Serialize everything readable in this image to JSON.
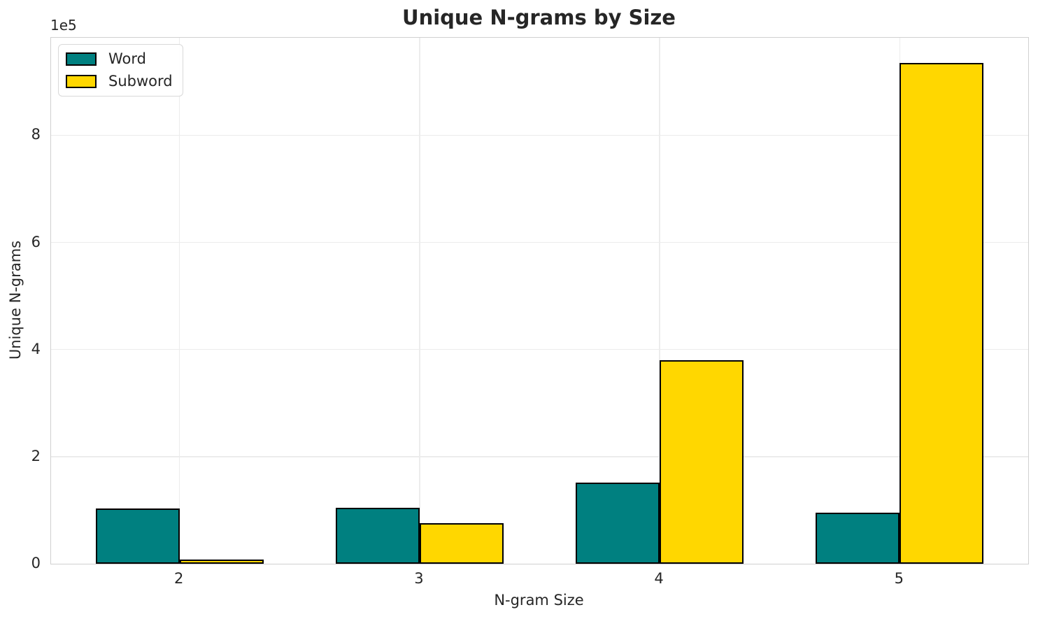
{
  "chart_data": {
    "type": "bar",
    "title": "Unique N-grams by Size",
    "xlabel": "N-gram Size",
    "ylabel": "Unique N-grams",
    "y_offset_text": "1e5",
    "categories": [
      "2",
      "3",
      "4",
      "5"
    ],
    "x_positions": [
      2,
      3,
      4,
      5
    ],
    "series": [
      {
        "name": "Word",
        "color": "#008080",
        "edge_color": "#000000",
        "values": [
          103000,
          104000,
          152000,
          95000
        ]
      },
      {
        "name": "Subword",
        "color": "#FFD700",
        "edge_color": "#000000",
        "values": [
          8000,
          76000,
          380000,
          935000
        ]
      }
    ],
    "xlim": [
      1.465,
      5.535
    ],
    "ylim": [
      0,
      982000
    ],
    "ytick_values": [
      0,
      200000,
      400000,
      600000,
      800000
    ],
    "ytick_labels": [
      "0",
      "2",
      "4",
      "6",
      "8"
    ],
    "grid": true,
    "legend": {
      "position": "upper left",
      "entries": [
        "Word",
        "Subword"
      ]
    },
    "bar_width_fraction": 0.35,
    "colors": {
      "background": "#ffffff",
      "text": "#262626",
      "grid": "#ececec",
      "spine": "#d0d0d0"
    }
  }
}
